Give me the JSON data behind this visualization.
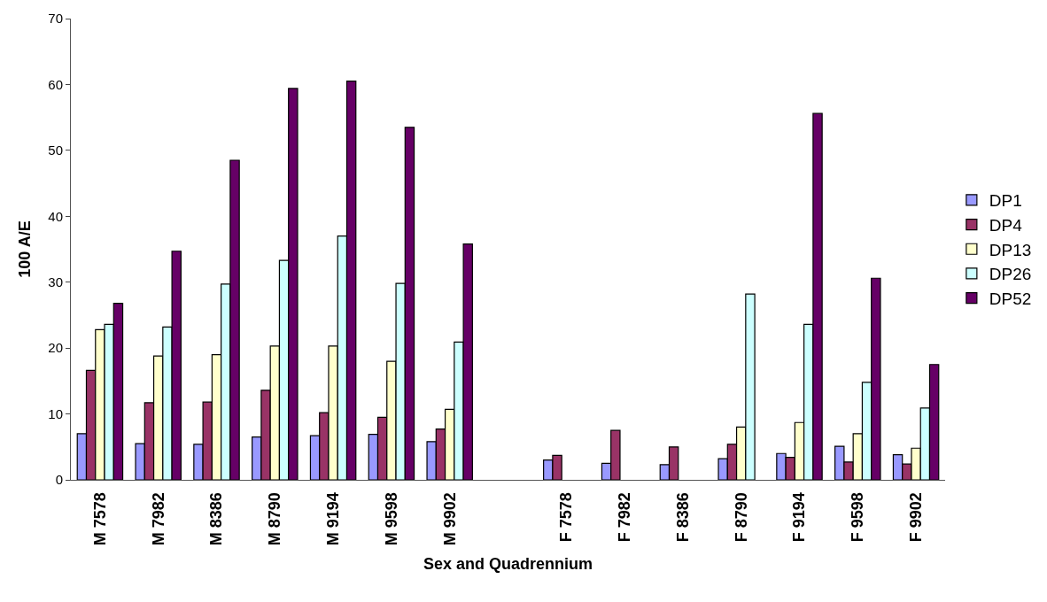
{
  "chart_data": {
    "type": "bar",
    "xlabel": "Sex and Quadrennium",
    "ylabel": "100 A/E",
    "categories": [
      "M 7578",
      "M 7982",
      "M 8386",
      "M 8790",
      "M 9194",
      "M 9598",
      "M 9902",
      null,
      "F 7578",
      "F 7982",
      "F 8386",
      "F 8790",
      "F 9194",
      "F 9598",
      "F 9902"
    ],
    "series": [
      {
        "name": "DP1",
        "color": "#9999ff",
        "values": [
          7.0,
          5.5,
          5.4,
          6.5,
          6.7,
          6.9,
          5.8,
          null,
          3.0,
          2.5,
          2.3,
          3.2,
          4.0,
          5.1,
          3.8
        ]
      },
      {
        "name": "DP4",
        "color": "#993366",
        "values": [
          16.6,
          11.7,
          11.8,
          13.6,
          10.2,
          9.5,
          7.7,
          null,
          3.7,
          7.5,
          5.0,
          5.4,
          3.4,
          2.7,
          2.4
        ]
      },
      {
        "name": "DP13",
        "color": "#ffffcc",
        "values": [
          22.8,
          18.8,
          19.0,
          20.3,
          20.3,
          18.0,
          10.7,
          null,
          null,
          null,
          null,
          8.0,
          8.7,
          7.0,
          4.8
        ]
      },
      {
        "name": "DP26",
        "color": "#ccffff",
        "values": [
          23.6,
          23.2,
          29.7,
          33.3,
          37.0,
          29.8,
          20.9,
          null,
          null,
          null,
          null,
          28.2,
          23.6,
          14.8,
          10.9
        ]
      },
      {
        "name": "DP52",
        "color": "#660066",
        "values": [
          26.8,
          34.7,
          48.5,
          59.4,
          60.5,
          53.5,
          35.8,
          null,
          null,
          null,
          null,
          null,
          55.6,
          30.6,
          17.5
        ]
      }
    ],
    "ylim": [
      0,
      70
    ],
    "yticks": [
      0,
      10,
      20,
      30,
      40,
      50,
      60,
      70
    ],
    "legend": "right"
  }
}
